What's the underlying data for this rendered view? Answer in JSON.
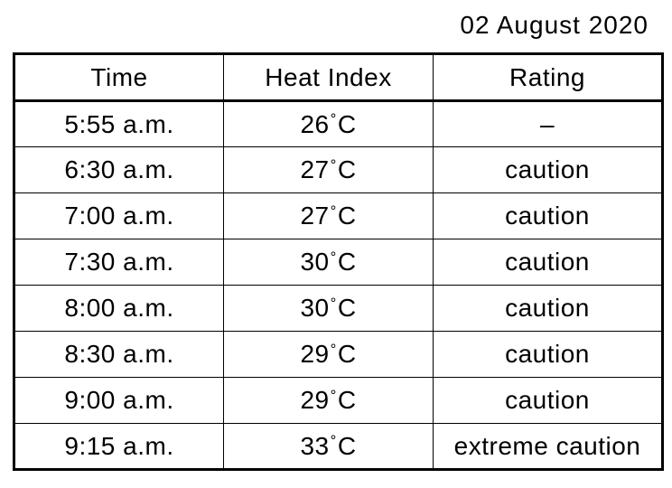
{
  "header": {
    "date": "02 August 2020"
  },
  "table": {
    "columns": [
      "Time",
      "Heat Index",
      "Rating"
    ],
    "rows": [
      {
        "time": "5:55 a.m.",
        "temp": "26",
        "degree": "°",
        "unit": "C",
        "rating": "–"
      },
      {
        "time": "6:30 a.m.",
        "temp": "27",
        "degree": "°",
        "unit": "C",
        "rating": "caution"
      },
      {
        "time": "7:00 a.m.",
        "temp": "27",
        "degree": "°",
        "unit": "C",
        "rating": "caution"
      },
      {
        "time": "7:30 a.m.",
        "temp": "30",
        "degree": "°",
        "unit": "C",
        "rating": "caution"
      },
      {
        "time": "8:00 a.m.",
        "temp": "30",
        "degree": "°",
        "unit": "C",
        "rating": "caution"
      },
      {
        "time": "8:30 a.m.",
        "temp": "29",
        "degree": "°",
        "unit": "C",
        "rating": "caution"
      },
      {
        "time": "9:00 a.m.",
        "temp": "29",
        "degree": "°",
        "unit": "C",
        "rating": "caution"
      },
      {
        "time": "9:15 a.m.",
        "temp": "33",
        "degree": "°",
        "unit": "C",
        "rating": "extreme caution"
      }
    ]
  },
  "colors": {
    "text": "#000000",
    "background": "#ffffff",
    "border": "#000000"
  }
}
